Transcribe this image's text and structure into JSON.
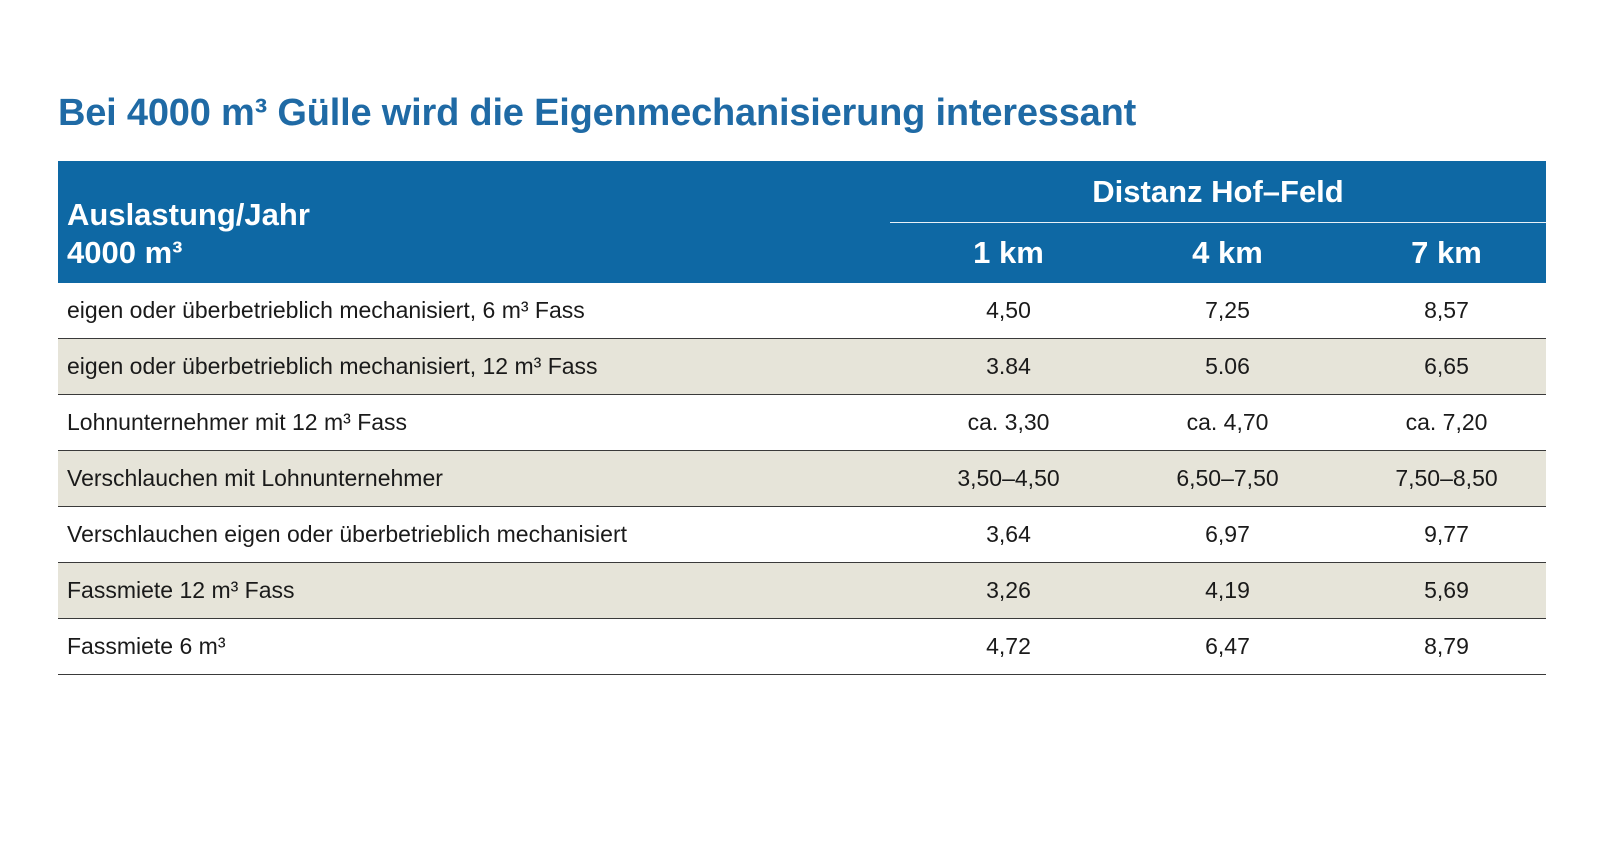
{
  "chart_data": {
    "type": "table",
    "title": "Bei 4000 m³ Gülle wird die Eigenmechanisierung interessant",
    "row_header": [
      "Auslastung/Jahr",
      "4000 m³"
    ],
    "column_group": "Distanz Hof–Feld",
    "columns": [
      "1 km",
      "4 km",
      "7 km"
    ],
    "rows": [
      {
        "label": "eigen oder überbetrieblich mechanisiert, 6 m³ Fass",
        "values": [
          "4,50",
          "7,25",
          "8,57"
        ]
      },
      {
        "label": "eigen oder überbetrieblich mechanisiert, 12 m³ Fass",
        "values": [
          "3.84",
          "5.06",
          "6,65"
        ]
      },
      {
        "label": "Lohnunternehmer mit 12 m³ Fass",
        "values": [
          "ca. 3,30",
          "ca. 4,70",
          "ca. 7,20"
        ]
      },
      {
        "label": "Verschlauchen mit Lohnunternehmer",
        "values": [
          "3,50–4,50",
          "6,50–7,50",
          "7,50–8,50"
        ]
      },
      {
        "label": "Verschlauchen eigen oder überbetrieblich mechanisiert",
        "values": [
          "3,64",
          "6,97",
          "9,77"
        ]
      },
      {
        "label": "Fassmiete 12 m³ Fass",
        "values": [
          "3,26",
          "4,19",
          "5,69"
        ]
      },
      {
        "label": "Fassmiete 6 m³",
        "values": [
          "4,72",
          "6,47",
          "8,79"
        ]
      }
    ]
  },
  "colors": {
    "title": "#1f6aa5",
    "header_background": "#0e68a4",
    "header_text": "#ffffff",
    "alt_row_background": "#e6e4d9",
    "rule": "#3a3a3a"
  }
}
